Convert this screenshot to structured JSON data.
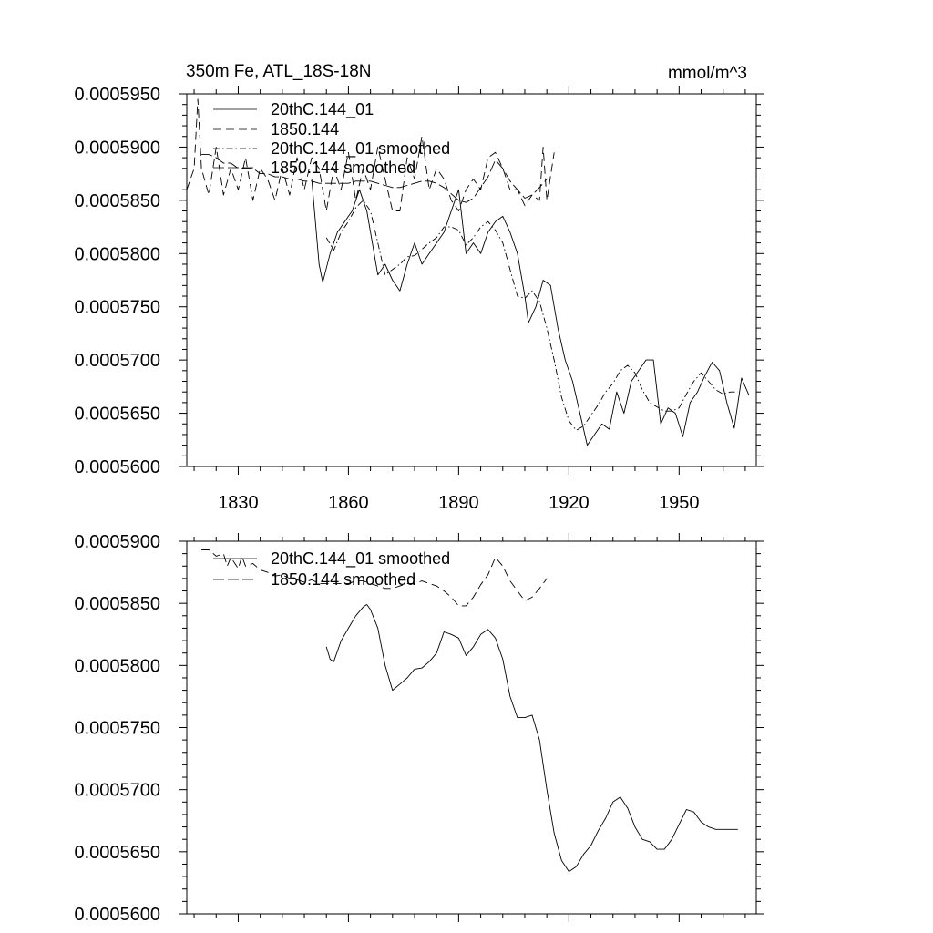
{
  "chart_data": [
    {
      "type": "line",
      "title": "350m Fe, ATL_18S-18N",
      "units": "mmol/m^3",
      "xlim": [
        1816,
        1971
      ],
      "ylim": [
        0.00056,
        0.000595
      ],
      "xticks": [
        1830,
        1860,
        1890,
        1920,
        1950
      ],
      "xtick_labels": [
        "1830",
        "1860",
        "1890",
        "1920",
        "1950"
      ],
      "yticks": [
        0.00056,
        0.000565,
        0.00057,
        0.000575,
        0.00058,
        0.000585,
        0.00059,
        0.000595
      ],
      "ytick_labels": [
        "0.0005600",
        "0.0005650",
        "0.0005700",
        "0.0005750",
        "0.0005800",
        "0.0005850",
        "0.0005900",
        "0.0005950"
      ],
      "legend_position": "top-left",
      "series": [
        {
          "name": "20thC.144_01",
          "style": "solid",
          "x": [
            1850,
            1852,
            1853,
            1855,
            1857,
            1859,
            1861,
            1863,
            1865,
            1868,
            1870,
            1872,
            1874,
            1876,
            1878,
            1880,
            1882,
            1884,
            1886,
            1888,
            1890,
            1892,
            1894,
            1896,
            1898,
            1900,
            1902,
            1904,
            1906,
            1908,
            1909,
            1911,
            1913,
            1915,
            1917,
            1919,
            1921,
            1923,
            1925,
            1927,
            1929,
            1931,
            1933,
            1935,
            1937,
            1939,
            1941,
            1943,
            1945,
            1947,
            1949,
            1951,
            1953,
            1955,
            1957,
            1959,
            1961,
            1963,
            1965,
            1967,
            1969
          ],
          "values": [
            0.000587,
            0.000579,
            0.0005773,
            0.00058,
            0.000582,
            0.000583,
            0.000584,
            0.000586,
            0.000584,
            0.000578,
            0.000579,
            0.0005775,
            0.0005765,
            0.000579,
            0.000581,
            0.000579,
            0.00058,
            0.000581,
            0.000582,
            0.000584,
            0.000586,
            0.00058,
            0.000581,
            0.00058,
            0.000582,
            0.000583,
            0.0005835,
            0.000582,
            0.00058,
            0.000576,
            0.0005735,
            0.000575,
            0.0005775,
            0.000577,
            0.000573,
            0.00057,
            0.000568,
            0.000565,
            0.000562,
            0.000563,
            0.000564,
            0.0005635,
            0.000567,
            0.000565,
            0.000568,
            0.000569,
            0.00057,
            0.00057,
            0.000564,
            0.0005655,
            0.000565,
            0.0005628,
            0.000566,
            0.000567,
            0.0005685,
            0.0005698,
            0.000569,
            0.000566,
            0.0005636,
            0.0005683,
            0.0005667
          ]
        },
        {
          "name": "1850.144",
          "style": "dashed",
          "x": [
            1816,
            1818,
            1819,
            1820,
            1822,
            1824,
            1826,
            1828,
            1830,
            1832,
            1834,
            1836,
            1838,
            1840,
            1842,
            1844,
            1846,
            1848,
            1850,
            1852,
            1854,
            1856,
            1858,
            1860,
            1862,
            1864,
            1866,
            1868,
            1870,
            1872,
            1874,
            1876,
            1878,
            1880,
            1882,
            1884,
            1886,
            1888,
            1890,
            1892,
            1894,
            1896,
            1898,
            1900,
            1902,
            1904,
            1906,
            1908,
            1910,
            1912,
            1913,
            1914,
            1916
          ],
          "values": [
            0.000586,
            0.000588,
            0.0005945,
            0.000588,
            0.0005855,
            0.00059,
            0.0005855,
            0.000588,
            0.000586,
            0.000589,
            0.000585,
            0.000588,
            0.000587,
            0.000585,
            0.000588,
            0.0005855,
            0.000589,
            0.000586,
            0.000589,
            0.000588,
            0.000584,
            0.000588,
            0.000586,
            0.0005895,
            0.000585,
            0.000588,
            0.000586,
            0.00059,
            0.000587,
            0.000584,
            0.000584,
            0.000589,
            0.000587,
            0.000591,
            0.000586,
            0.000588,
            0.000587,
            0.000585,
            0.000584,
            0.000586,
            0.000587,
            0.000586,
            0.000589,
            0.0005895,
            0.000588,
            0.000586,
            0.000586,
            0.0005845,
            0.0005855,
            0.000585,
            0.00059,
            0.000585,
            0.0005895
          ]
        },
        {
          "name": "20thC.144_01 smoothed",
          "style": "dash-dot",
          "x": [
            1854,
            1856,
            1858,
            1860,
            1862,
            1864,
            1866,
            1868,
            1870,
            1872,
            1874,
            1876,
            1878,
            1880,
            1882,
            1884,
            1886,
            1888,
            1890,
            1892,
            1894,
            1896,
            1898,
            1900,
            1902,
            1904,
            1906,
            1908,
            1910,
            1912,
            1914,
            1916,
            1918,
            1920,
            1922,
            1924,
            1926,
            1928,
            1930,
            1932,
            1934,
            1936,
            1938,
            1940,
            1942,
            1944,
            1946,
            1948,
            1950,
            1952,
            1954,
            1956,
            1958,
            1960,
            1962,
            1964,
            1966
          ],
          "values": [
            0.0005815,
            0.0005803,
            0.000582,
            0.000583,
            0.0005843,
            0.000585,
            0.000584,
            0.000581,
            0.000578,
            0.0005785,
            0.000579,
            0.0005797,
            0.0005798,
            0.0005804,
            0.000581,
            0.0005815,
            0.0005825,
            0.0005825,
            0.0005822,
            0.0005808,
            0.0005815,
            0.0005825,
            0.000583,
            0.0005822,
            0.000581,
            0.0005785,
            0.000576,
            0.0005758,
            0.0005765,
            0.0005755,
            0.000573,
            0.00057,
            0.0005665,
            0.0005643,
            0.0005634,
            0.0005638,
            0.0005648,
            0.0005658,
            0.000567,
            0.0005678,
            0.000569,
            0.0005695,
            0.0005688,
            0.0005672,
            0.000566,
            0.0005656,
            0.0005652,
            0.0005652,
            0.0005655,
            0.0005668,
            0.000568,
            0.0005688,
            0.000568,
            0.0005672,
            0.0005668,
            0.000567,
            0.000567
          ]
        },
        {
          "name": "1850.144 smoothed",
          "style": "dashed",
          "x": [
            1820,
            1822,
            1824,
            1826,
            1828,
            1830,
            1832,
            1834,
            1836,
            1838,
            1840,
            1842,
            1844,
            1846,
            1848,
            1850,
            1852,
            1854,
            1856,
            1858,
            1860,
            1862,
            1864,
            1866,
            1868,
            1870,
            1872,
            1874,
            1876,
            1878,
            1880,
            1882,
            1884,
            1886,
            1888,
            1890,
            1892,
            1894,
            1896,
            1898,
            1900,
            1902,
            1904,
            1906,
            1908,
            1910,
            1912,
            1914
          ],
          "values": [
            0.0005893,
            0.0005893,
            0.000589,
            0.0005885,
            0.0005885,
            0.000588,
            0.000588,
            0.000588,
            0.0005875,
            0.0005875,
            0.0005872,
            0.0005872,
            0.000587,
            0.000587,
            0.0005868,
            0.0005868,
            0.0005866,
            0.0005866,
            0.0005866,
            0.0005866,
            0.0005866,
            0.0005868,
            0.0005868,
            0.0005868,
            0.0005866,
            0.0005864,
            0.0005862,
            0.0005862,
            0.0005864,
            0.0005866,
            0.0005868,
            0.0005868,
            0.0005866,
            0.0005862,
            0.0005856,
            0.000585,
            0.0005848,
            0.0005852,
            0.0005862,
            0.0005872,
            0.0005888,
            0.000588,
            0.0005868,
            0.000586,
            0.0005852,
            0.0005855,
            0.0005862,
            0.000587
          ]
        }
      ]
    },
    {
      "type": "line",
      "xlim": [
        1816,
        1971
      ],
      "ylim": [
        0.00056,
        0.00059
      ],
      "xticks": [
        1830,
        1860,
        1890,
        1920,
        1950
      ],
      "yticks": [
        0.00056,
        0.000565,
        0.00057,
        0.000575,
        0.00058,
        0.000585,
        0.00059
      ],
      "ytick_labels": [
        "0.0005600",
        "0.0005650",
        "0.0005700",
        "0.0005750",
        "0.0005800",
        "0.0005850",
        "0.0005900"
      ],
      "legend_position": "top-left",
      "series": [
        {
          "name": "20thC.144_01 smoothed",
          "style": "solid",
          "x": [
            1854,
            1855,
            1856,
            1858,
            1860,
            1862,
            1864,
            1865,
            1866,
            1868,
            1870,
            1872,
            1874,
            1876,
            1878,
            1880,
            1882,
            1884,
            1886,
            1888,
            1890,
            1892,
            1894,
            1896,
            1898,
            1900,
            1902,
            1904,
            1906,
            1908,
            1910,
            1912,
            1914,
            1916,
            1918,
            1920,
            1922,
            1924,
            1926,
            1928,
            1930,
            1932,
            1934,
            1936,
            1938,
            1940,
            1942,
            1944,
            1946,
            1948,
            1950,
            1952,
            1954,
            1956,
            1958,
            1960,
            1962,
            1964,
            1966
          ],
          "values": [
            0.0005815,
            0.0005805,
            0.0005803,
            0.000582,
            0.000583,
            0.000584,
            0.0005847,
            0.0005849,
            0.0005845,
            0.000583,
            0.00058,
            0.000578,
            0.0005785,
            0.000579,
            0.0005797,
            0.0005798,
            0.0005803,
            0.000581,
            0.0005827,
            0.0005825,
            0.0005822,
            0.0005808,
            0.0005815,
            0.0005825,
            0.0005829,
            0.0005822,
            0.0005805,
            0.0005775,
            0.0005758,
            0.0005758,
            0.000576,
            0.000574,
            0.00057,
            0.0005665,
            0.0005643,
            0.0005634,
            0.0005638,
            0.0005648,
            0.0005655,
            0.0005667,
            0.0005677,
            0.000569,
            0.0005694,
            0.0005685,
            0.000567,
            0.000566,
            0.0005658,
            0.0005652,
            0.0005652,
            0.000566,
            0.0005672,
            0.0005684,
            0.0005682,
            0.0005674,
            0.000567,
            0.0005668,
            0.0005668,
            0.0005668,
            0.0005668
          ]
        },
        {
          "name": "1850.144 smoothed",
          "style": "dashed",
          "x": [
            1820,
            1822,
            1824,
            1826,
            1827,
            1828,
            1830,
            1831,
            1832,
            1834,
            1836,
            1838,
            1840,
            1842,
            1844,
            1846,
            1848,
            1850,
            1852,
            1854,
            1856,
            1858,
            1860,
            1862,
            1864,
            1866,
            1868,
            1870,
            1872,
            1874,
            1876,
            1878,
            1880,
            1882,
            1884,
            1886,
            1888,
            1890,
            1892,
            1894,
            1896,
            1898,
            1900,
            1902,
            1904,
            1906,
            1908,
            1910,
            1912,
            1914
          ],
          "values": [
            0.0005893,
            0.0005893,
            0.0005888,
            0.000589,
            0.000588,
            0.0005887,
            0.0005878,
            0.0005888,
            0.000588,
            0.0005882,
            0.0005877,
            0.0005875,
            0.0005872,
            0.0005873,
            0.000587,
            0.0005869,
            0.0005867,
            0.0005869,
            0.0005866,
            0.0005866,
            0.0005866,
            0.0005866,
            0.0005866,
            0.0005868,
            0.0005868,
            0.0005866,
            0.0005864,
            0.0005862,
            0.0005862,
            0.0005864,
            0.0005866,
            0.0005866,
            0.0005868,
            0.0005866,
            0.0005864,
            0.000586,
            0.0005855,
            0.0005848,
            0.0005848,
            0.0005855,
            0.0005865,
            0.0005873,
            0.0005887,
            0.000588,
            0.0005868,
            0.000586,
            0.0005852,
            0.0005855,
            0.0005862,
            0.000587
          ]
        }
      ]
    }
  ]
}
